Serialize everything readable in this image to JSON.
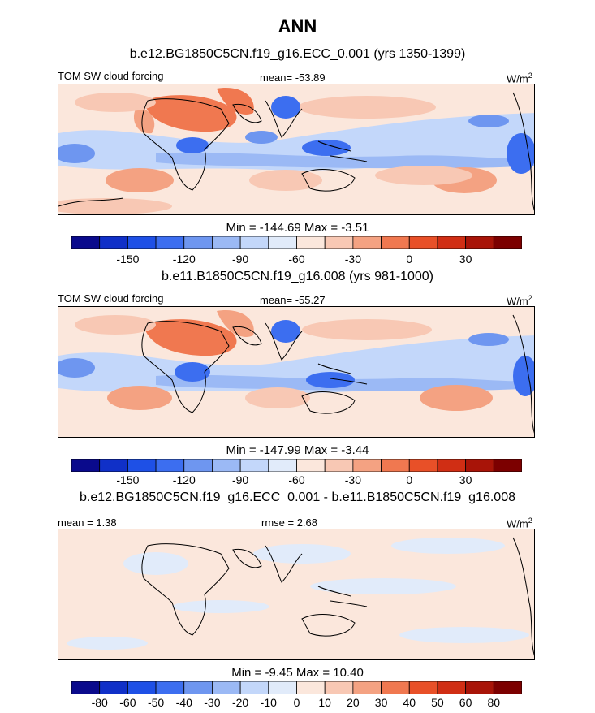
{
  "title": "ANN",
  "units_label": "W/m",
  "units_sup": "2",
  "panels": [
    {
      "case": "b.e12.BG1850C5CN.f19_g16.ECC_0.001 (yrs 1350-1399)",
      "variable": "TOM SW cloud forcing",
      "mean_text": "mean= -53.89",
      "minmax_text": "Min = -144.69 Max =  -3.51"
    },
    {
      "case": "b.e11.B1850C5CN.f19_g16.008 (yrs 981-1000)",
      "variable": "TOM SW cloud forcing",
      "mean_text": "mean= -55.27",
      "minmax_text": "Min = -147.99 Max =  -3.44"
    },
    {
      "case": "b.e12.BG1850C5CN.f19_g16.ECC_0.001 - b.e11.B1850C5CN.f19_g16.008",
      "mean_text": "mean =   1.38",
      "rmse_text": "rmse =   2.68",
      "minmax_text": "Min =  -9.45 Max =  10.40"
    }
  ],
  "colorbar_colors": [
    "#0a0a8c",
    "#1030c8",
    "#1e50e6",
    "#3c6ef0",
    "#6e96f0",
    "#9bb9f5",
    "#c3d7fa",
    "#e1ebfa",
    "#fbe7dc",
    "#f8c8b4",
    "#f4a282",
    "#f07850",
    "#e85028",
    "#d02e14",
    "#a81408",
    "#7c0000"
  ],
  "colorbars": [
    {
      "ticks": [
        "-150",
        "-120",
        "-90",
        "-60",
        "-30",
        "0",
        "30"
      ]
    },
    {
      "ticks": [
        "-150",
        "-120",
        "-90",
        "-60",
        "-30",
        "0",
        "30"
      ]
    },
    {
      "ticks": [
        "-80",
        "-60",
        "-50",
        "-40",
        "-30",
        "-20",
        "-10",
        "0",
        "10",
        "20",
        "30",
        "40",
        "50",
        "60",
        "80"
      ]
    }
  ],
  "chart_data": [
    {
      "type": "heatmap",
      "title": "b.e12.BG1850C5CN.f19_g16.ECC_0.001 (yrs 1350-1399)",
      "variable": "TOM SW cloud forcing",
      "units": "W/m2",
      "mean": -53.89,
      "min": -144.69,
      "max": -3.51,
      "levels": [
        -165,
        -150,
        -135,
        -120,
        -105,
        -90,
        -75,
        -60,
        -45,
        -30,
        -15,
        0,
        15,
        30,
        45
      ],
      "colorbar_ticks": [
        -150,
        -120,
        -90,
        -60,
        -30,
        0,
        30
      ]
    },
    {
      "type": "heatmap",
      "title": "b.e11.B1850C5CN.f19_g16.008 (yrs 981-1000)",
      "variable": "TOM SW cloud forcing",
      "units": "W/m2",
      "mean": -55.27,
      "min": -147.99,
      "max": -3.44,
      "levels": [
        -165,
        -150,
        -135,
        -120,
        -105,
        -90,
        -75,
        -60,
        -45,
        -30,
        -15,
        0,
        15,
        30,
        45
      ],
      "colorbar_ticks": [
        -150,
        -120,
        -90,
        -60,
        -30,
        0,
        30
      ]
    },
    {
      "type": "heatmap",
      "title": "b.e12.BG1850C5CN.f19_g16.ECC_0.001 - b.e11.B1850C5CN.f19_g16.008",
      "units": "W/m2",
      "mean": 1.38,
      "rmse": 2.68,
      "min": -9.45,
      "max": 10.4,
      "levels": [
        -80,
        -60,
        -50,
        -40,
        -30,
        -20,
        -10,
        0,
        10,
        20,
        30,
        40,
        50,
        60,
        80
      ],
      "colorbar_ticks": [
        -80,
        -60,
        -50,
        -40,
        -30,
        -20,
        -10,
        0,
        10,
        20,
        30,
        40,
        50,
        60,
        80
      ]
    }
  ]
}
